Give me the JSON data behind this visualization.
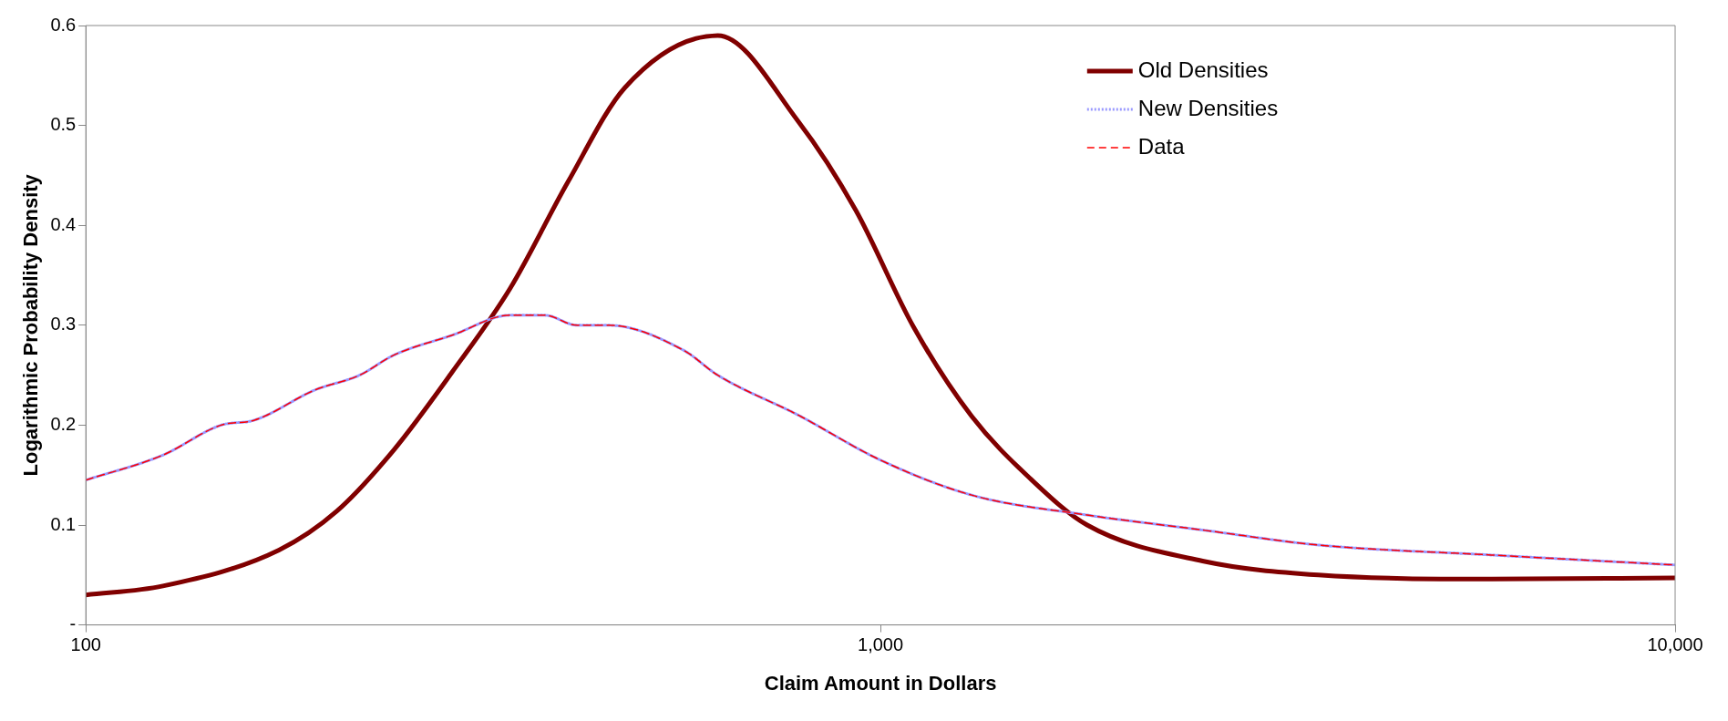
{
  "chart_data": {
    "type": "line",
    "xlabel": "Claim Amount in Dollars",
    "ylabel": "Logarithmic Probability Density",
    "log": "x",
    "xlim": [
      100,
      10000
    ],
    "xticks": [
      100,
      {
        "value": 1000,
        "label": "1,000"
      },
      {
        "value": 10000,
        "label": "10,000"
      }
    ],
    "ylim": [
      0,
      0.6
    ],
    "yticks": [
      {
        "value": 0,
        "label": "-"
      },
      0.1,
      0.2,
      0.3,
      0.4,
      0.5,
      0.6
    ],
    "grid": false,
    "legend": "top right",
    "marker": "none",
    "series": [
      {
        "name": "Old Densities",
        "color": "#800000",
        "line_style": "solid",
        "x": [
          100,
          125,
          175,
          207,
          244,
          289,
          342,
          404,
          477,
          624,
          788,
          931,
          1101,
          1302,
          1541,
          1820,
          2543,
          3556,
          5870,
          10000
        ],
        "values": [
          0.03,
          0.039,
          0.075,
          0.114,
          0.175,
          0.253,
          0.337,
          0.443,
          0.538,
          0.59,
          0.504,
          0.415,
          0.298,
          0.209,
          0.147,
          0.1,
          0.064,
          0.05,
          0.046,
          0.047
        ]
      },
      {
        "name": "New Densities",
        "color": "#9999ff",
        "line_style": "dotted",
        "x": [
          100,
          125,
          148,
          163,
          194,
          221,
          244,
          289,
          342,
          378,
          415,
          454,
          565,
          624,
          788,
          1000,
          1302,
          1820,
          2543,
          3556,
          5870,
          10000
        ],
        "values": [
          0.145,
          0.17,
          0.2,
          0.205,
          0.235,
          0.25,
          0.27,
          0.29,
          0.31,
          0.31,
          0.3,
          0.3,
          0.275,
          0.25,
          0.21,
          0.165,
          0.13,
          0.11,
          0.095,
          0.08,
          0.07,
          0.06
        ]
      },
      {
        "name": "Data",
        "color": "#ff0000",
        "line_style": "dashed",
        "x": [
          100,
          125,
          148,
          163,
          194,
          221,
          244,
          289,
          342,
          378,
          415,
          454,
          565,
          624,
          788,
          1000,
          1302,
          1820,
          2543,
          3556,
          5870,
          10000
        ],
        "values": [
          0.145,
          0.17,
          0.2,
          0.205,
          0.235,
          0.25,
          0.27,
          0.29,
          0.31,
          0.31,
          0.3,
          0.3,
          0.275,
          0.25,
          0.21,
          0.165,
          0.13,
          0.11,
          0.095,
          0.08,
          0.07,
          0.06
        ]
      }
    ]
  }
}
